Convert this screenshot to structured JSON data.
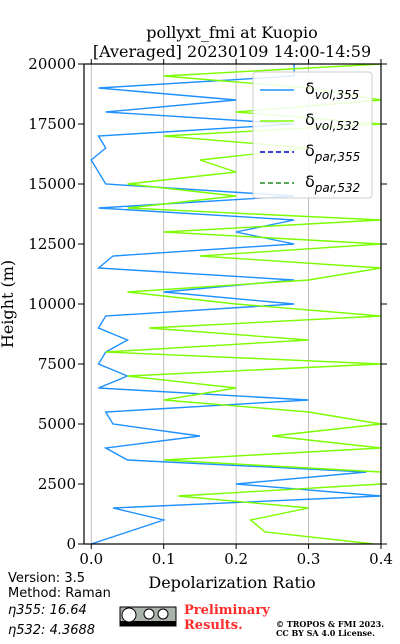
{
  "chart_data": {
    "type": "line",
    "title": [
      "pollyxt_fmi at Kuopio",
      "[Averaged] 20230109 14:00-14:59"
    ],
    "x_label": "Depolarization Ratio",
    "y_label": "Height (m)",
    "xlim": [
      -0.01,
      0.4
    ],
    "ylim": [
      0,
      20000
    ],
    "xticks": [
      {
        "value": 0,
        "label": "0.0"
      },
      0.1,
      0.2,
      0.3,
      0.4
    ],
    "yticks": [
      0,
      2500,
      5000,
      7500,
      10000,
      12500,
      15000,
      17500,
      20000
    ],
    "grid": "x",
    "legend": "upper right",
    "y": [
      0,
      500,
      1000,
      1500,
      2000,
      2500,
      3000,
      3500,
      4000,
      4500,
      5000,
      5500,
      6000,
      6500,
      7000,
      7500,
      8000,
      8500,
      9000,
      9500,
      10000,
      10500,
      11000,
      11500,
      12000,
      12500,
      13000,
      13500,
      14000,
      14500,
      15000,
      15500,
      16000,
      16500,
      17000,
      17500,
      18000,
      18500,
      19000,
      19500,
      20000
    ],
    "series": [
      {
        "name": "δvol,355",
        "color": "#1e90ff",
        "dash": false,
        "values": [
          0.0,
          0.05,
          0.1,
          0.03,
          0.4,
          0.2,
          0.38,
          0.05,
          0.02,
          0.15,
          0.03,
          0.02,
          0.3,
          0.01,
          0.05,
          0.01,
          0.02,
          0.05,
          0.01,
          0.02,
          0.28,
          0.1,
          0.28,
          0.01,
          0.03,
          0.28,
          0.2,
          0.28,
          0.01,
          0.28,
          0.02,
          0.01,
          0.0,
          0.02,
          0.01,
          0.28,
          0.02,
          0.2,
          0.01,
          0.28,
          0.28
        ]
      },
      {
        "name": "δvol,532",
        "color": "#7cfc00",
        "dash": false,
        "values": [
          0.39,
          0.24,
          0.22,
          0.3,
          0.12,
          0.4,
          0.4,
          0.1,
          0.4,
          0.25,
          0.4,
          0.3,
          0.1,
          0.2,
          0.05,
          0.4,
          0.02,
          0.3,
          0.08,
          0.4,
          0.2,
          0.05,
          0.3,
          0.4,
          0.15,
          0.4,
          0.1,
          0.4,
          0.05,
          0.2,
          0.05,
          0.2,
          0.15,
          0.3,
          0.1,
          0.4,
          0.2,
          0.4,
          0.3,
          0.1,
          0.4
        ]
      },
      {
        "name": "δpar,355",
        "color": "#0000cd",
        "dash": true,
        "values": [
          null,
          null,
          null,
          null,
          null,
          null,
          null,
          null,
          null,
          null,
          null,
          null,
          null,
          null,
          null,
          null,
          null,
          null,
          null,
          null,
          null,
          null,
          null,
          null,
          null,
          null,
          null,
          null,
          null,
          null,
          null,
          null,
          null,
          null,
          null,
          null,
          null,
          null,
          null,
          null,
          null
        ]
      },
      {
        "name": "δpar,532",
        "color": "#228b22",
        "dash": true,
        "values": [
          null,
          null,
          null,
          null,
          null,
          null,
          null,
          null,
          null,
          null,
          null,
          null,
          null,
          null,
          null,
          null,
          null,
          null,
          null,
          null,
          null,
          null,
          null,
          null,
          null,
          null,
          null,
          null,
          null,
          null,
          null,
          null,
          null,
          null,
          null,
          null,
          null,
          null,
          null,
          null,
          null
        ]
      }
    ],
    "annotations": {
      "version": "Version: 3.5",
      "method": "Method: Raman",
      "eta355": "η355:  16.64",
      "eta532": "η532: 4.3688",
      "preliminary": [
        "Preliminary",
        "Results."
      ],
      "license": [
        "© TROPOS & FMI 2023.",
        "CC BY SA 4.0 License."
      ]
    }
  }
}
